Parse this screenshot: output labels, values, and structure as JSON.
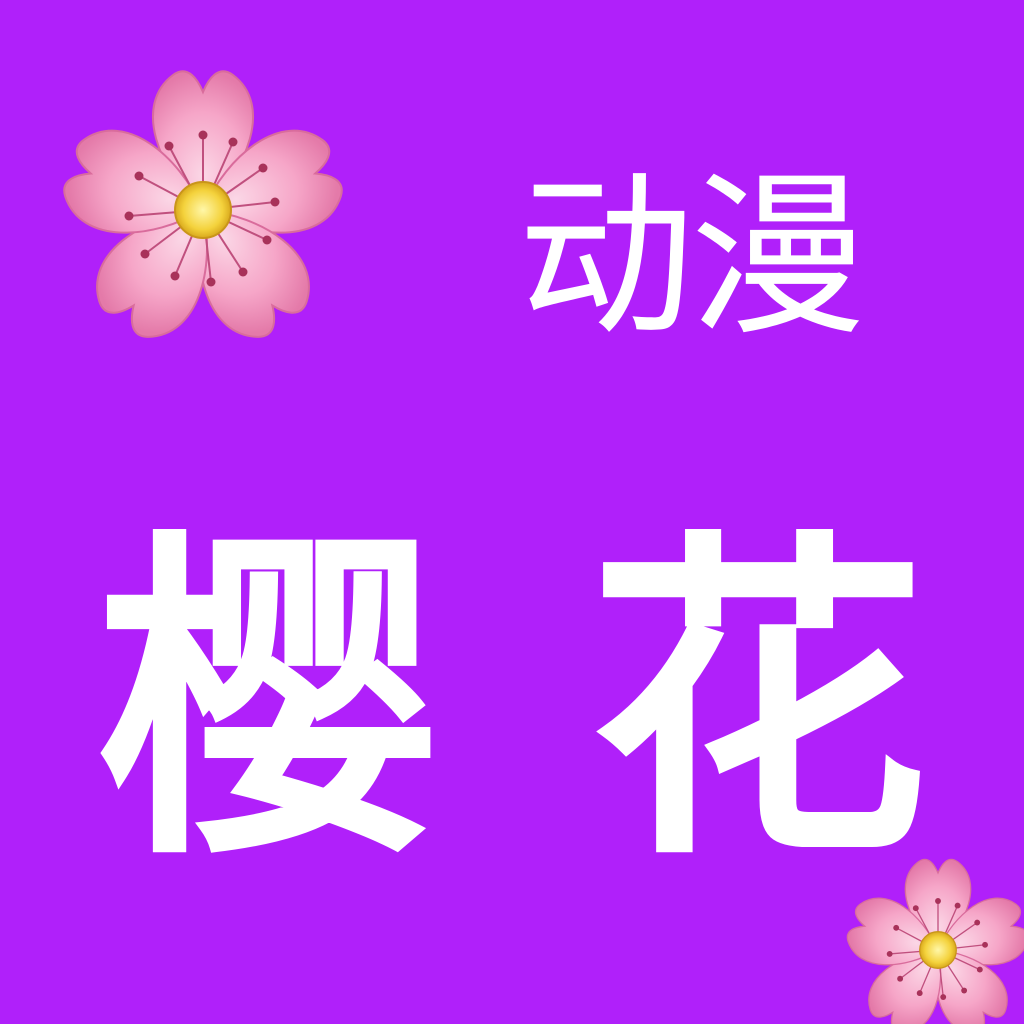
{
  "background_color": "#b020fa",
  "text_color": "#ffffff",
  "subtitle": "动漫",
  "title": {
    "first_char": "樱",
    "second_char": "花"
  },
  "decorations": [
    {
      "icon": "cherry-blossom-icon"
    },
    {
      "icon": "cherry-blossom-icon"
    }
  ],
  "colors": {
    "petal": "#f7a8cc",
    "petal_light": "#fbd3e4",
    "petal_dark": "#e17aa8",
    "center": "#f4d23c",
    "stamen": "#a8325a"
  }
}
